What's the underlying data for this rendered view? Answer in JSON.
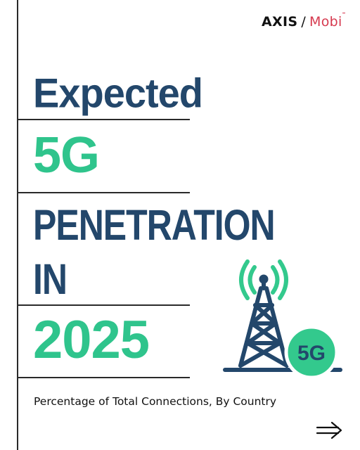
{
  "brand": {
    "name_bold": "AXIS",
    "separator": "/",
    "name_accent": "Mobi"
  },
  "headline": {
    "line1": "Expected",
    "line2": "5G",
    "line3": "PENETRATION",
    "line4": "IN",
    "line5": "2025"
  },
  "badge": {
    "text": "5G"
  },
  "subtitle": "Percentage of Total Connections, By Country",
  "nav": {
    "next_icon": "arrow-right-icon"
  },
  "colors": {
    "navy": "#23476b",
    "green": "#2fc48c",
    "accent": "#d63a4f",
    "badge_green": "#33c98d"
  }
}
